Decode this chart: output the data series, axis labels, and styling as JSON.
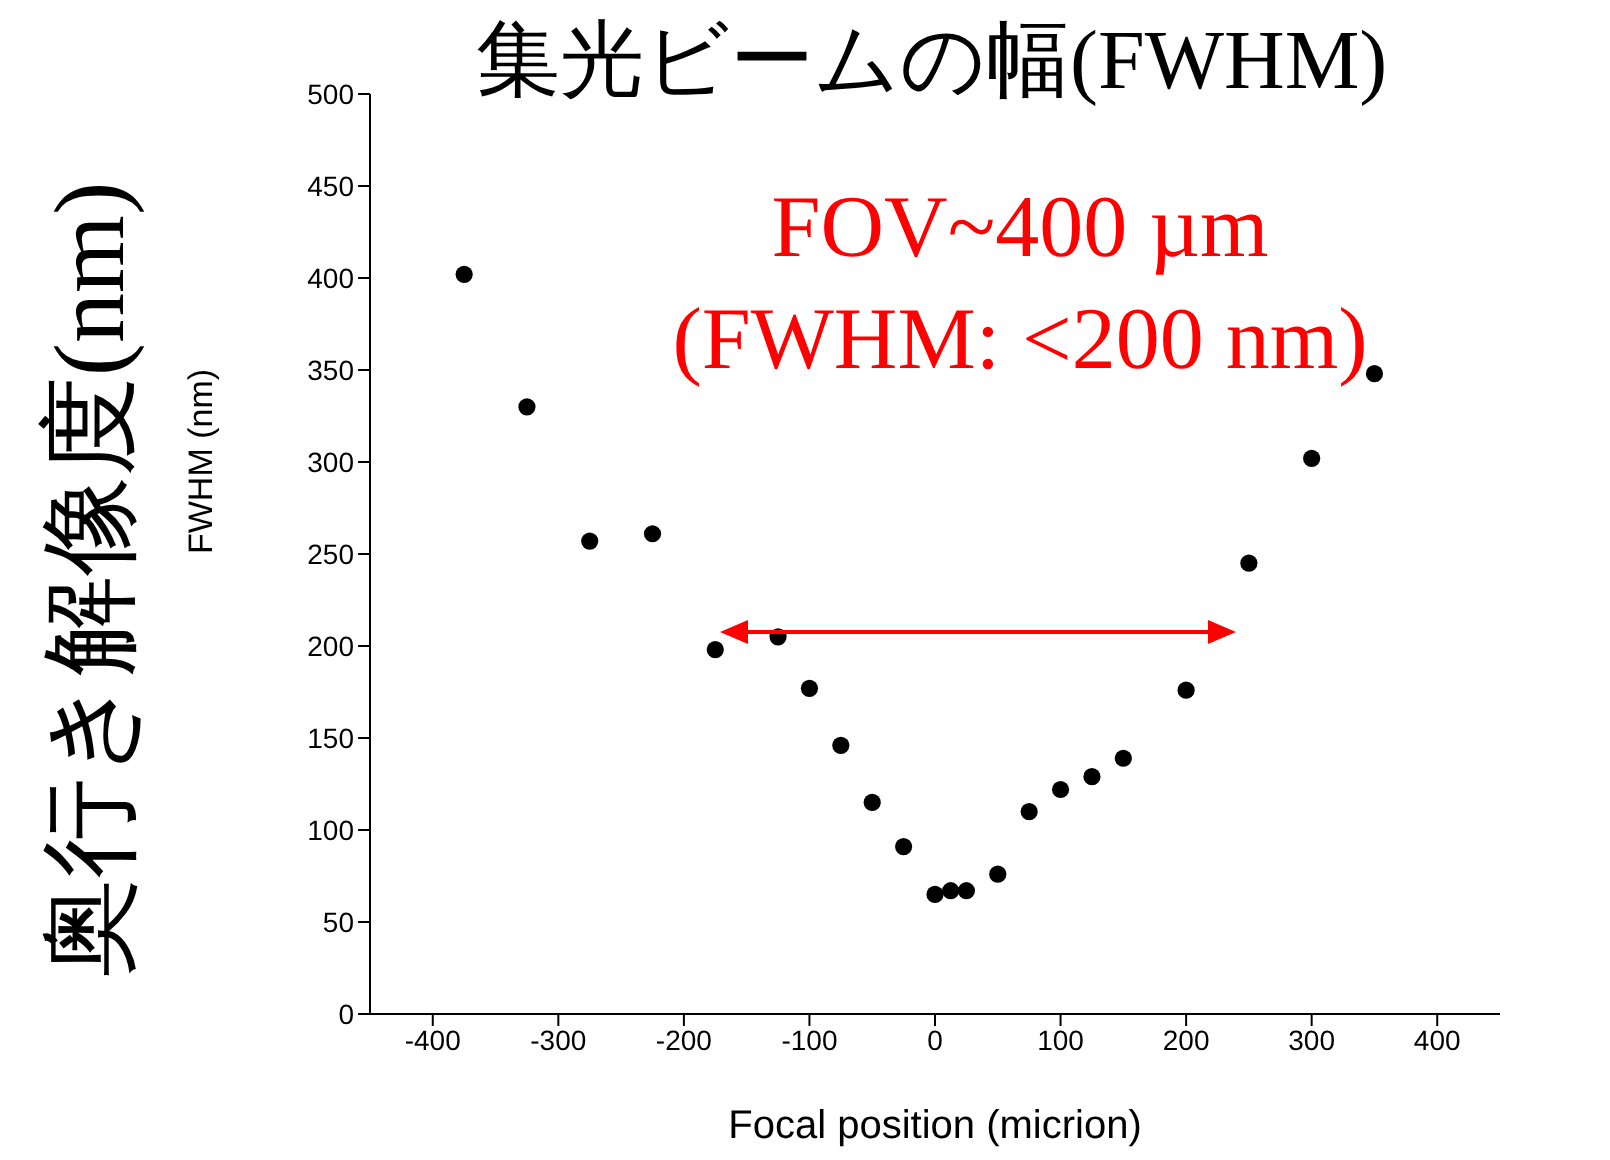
{
  "chart_data": {
    "type": "scatter",
    "title": "集光ビームの幅(FWHM)",
    "xlabel": "Focal position (micrion)",
    "ylabel": "FWHM (nm)",
    "annotations": [
      "奥行き解像度(nm)",
      "FOV~400 µm",
      "(FWHM:  <200 nm)"
    ],
    "x": [
      -375,
      -325,
      -275,
      -225,
      -175,
      -125,
      -100,
      -75,
      -50,
      -25,
      0,
      12.5,
      25,
      50,
      75,
      100,
      125,
      150,
      200,
      250,
      300,
      350
    ],
    "series": [
      {
        "color": "#000000",
        "values": [
          402,
          330,
          257,
          261,
          198,
          205,
          177,
          146,
          115,
          91,
          65,
          67,
          67,
          76,
          110,
          122,
          129,
          139,
          176,
          245,
          302,
          348
        ]
      }
    ],
    "xlim": [
      -450,
      450
    ],
    "xticks": [
      -400,
      -300,
      -200,
      -100,
      0,
      100,
      200,
      300,
      400
    ],
    "ylim": [
      0,
      500
    ],
    "yticks": [
      0,
      50,
      100,
      150,
      200,
      250,
      300,
      350,
      400,
      450,
      500
    ],
    "grid": false,
    "legend": false,
    "marker": "circle"
  }
}
